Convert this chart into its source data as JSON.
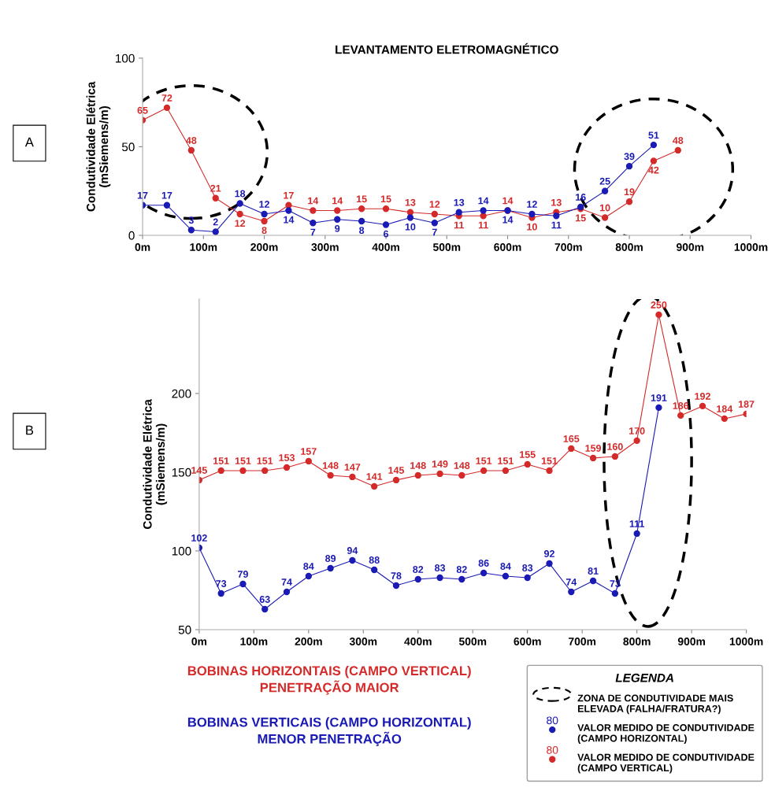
{
  "chart_data": [
    {
      "type": "line",
      "title": "LEVANTAMENTO ELETROMAGNÉTICO",
      "ylabel": "Condutividade Elétrica\n(mSiemens/m)",
      "x": [
        0,
        40,
        80,
        120,
        160,
        200,
        240,
        280,
        320,
        360,
        400,
        440,
        480,
        520,
        560,
        600,
        640,
        680,
        720,
        760,
        800,
        840,
        880
      ],
      "xlim": [
        0,
        1000
      ],
      "xticks": [
        {
          "value": 0,
          "label": "0m"
        },
        {
          "value": 100,
          "label": "100m"
        },
        {
          "value": 200,
          "label": "200m"
        },
        {
          "value": 300,
          "label": "300m"
        },
        {
          "value": 400,
          "label": "400m"
        },
        {
          "value": 500,
          "label": "500m"
        },
        {
          "value": 600,
          "label": "600m"
        },
        {
          "value": 700,
          "label": "700m"
        },
        {
          "value": 800,
          "label": "800m"
        },
        {
          "value": 900,
          "label": "900m"
        },
        {
          "value": 1000,
          "label": "1000m"
        }
      ],
      "ylim": [
        0,
        100
      ],
      "yticks": [
        0,
        50,
        100
      ],
      "grid": false,
      "marker": "circle",
      "line_style": "solid",
      "data_labels": true,
      "annotations": [
        "A"
      ],
      "series": [
        {
          "color": "#d42a2a",
          "values": [
            65,
            72,
            48,
            21,
            12,
            8,
            17,
            14,
            14,
            15,
            15,
            13,
            12,
            11,
            11,
            14,
            10,
            13,
            15,
            10,
            19,
            42,
            48
          ]
        },
        {
          "color": "#1a1ab4",
          "x": [
            0,
            40,
            80,
            120,
            160,
            200,
            240,
            280,
            320,
            360,
            400,
            440,
            480,
            520,
            560,
            600,
            640,
            680,
            720,
            760,
            800,
            840
          ],
          "values": [
            17,
            17,
            3,
            2,
            18,
            12,
            14,
            7,
            9,
            8,
            6,
            10,
            7,
            13,
            14,
            14,
            12,
            11,
            16,
            25,
            39,
            51
          ]
        }
      ]
    },
    {
      "type": "line",
      "ylabel": "Condutividade Elétrica\n(mSiemens/m)",
      "x": [
        0,
        40,
        80,
        120,
        160,
        200,
        240,
        280,
        320,
        360,
        400,
        440,
        480,
        520,
        560,
        600,
        640,
        680,
        720,
        760,
        800,
        840,
        880,
        920,
        960,
        1000
      ],
      "xlim": [
        0,
        1000
      ],
      "xticks": [
        {
          "value": 0,
          "label": "0m"
        },
        {
          "value": 100,
          "label": "100m"
        },
        {
          "value": 200,
          "label": "200m"
        },
        {
          "value": 300,
          "label": "300m"
        },
        {
          "value": 400,
          "label": "400m"
        },
        {
          "value": 500,
          "label": "500m"
        },
        {
          "value": 600,
          "label": "600m"
        },
        {
          "value": 700,
          "label": "700m"
        },
        {
          "value": 800,
          "label": "800m"
        },
        {
          "value": 900,
          "label": "900m"
        },
        {
          "value": 1000,
          "label": "1000m"
        }
      ],
      "ylim": [
        50,
        260
      ],
      "yticks": [
        50,
        100,
        150,
        200
      ],
      "grid": false,
      "marker": "circle",
      "line_style": "solid",
      "data_labels": true,
      "legend": "bottom right",
      "legend_title": "LEGENDA",
      "annotations": [
        "B",
        "BOBINAS HORIZONTAIS (CAMPO VERTICAL)\nPENETRAÇÃO MAIOR",
        "BOBINAS VERTICAIS (CAMPO HORIZONTAL)\nMENOR PENETRAÇÃO",
        "ZONA DE CONDUTIVIDADE MAIS\nELEVADA (FALHA/FRATURA?)",
        "80"
      ],
      "series": [
        {
          "name": "VALOR MEDIDO DE CONDUTIVIDADE\n(CAMPO HORIZONTAL)",
          "color": "#1a1ab4",
          "x": [
            0,
            40,
            80,
            120,
            160,
            200,
            240,
            280,
            320,
            360,
            400,
            440,
            480,
            520,
            560,
            600,
            640,
            680,
            720,
            760,
            800,
            840
          ],
          "values": [
            102,
            73,
            79,
            63,
            74,
            84,
            89,
            94,
            88,
            78,
            82,
            83,
            82,
            86,
            84,
            83,
            92,
            74,
            81,
            73,
            111,
            191
          ]
        },
        {
          "name": "VALOR MEDIDO DE CONDUTIVIDADE\n(CAMPO VERTICAL)",
          "color": "#d42a2a",
          "values": [
            145,
            151,
            151,
            151,
            153,
            157,
            148,
            147,
            141,
            145,
            148,
            149,
            148,
            151,
            151,
            155,
            151,
            165,
            159,
            160,
            170,
            250,
            186,
            192,
            184,
            187
          ]
        }
      ]
    }
  ]
}
